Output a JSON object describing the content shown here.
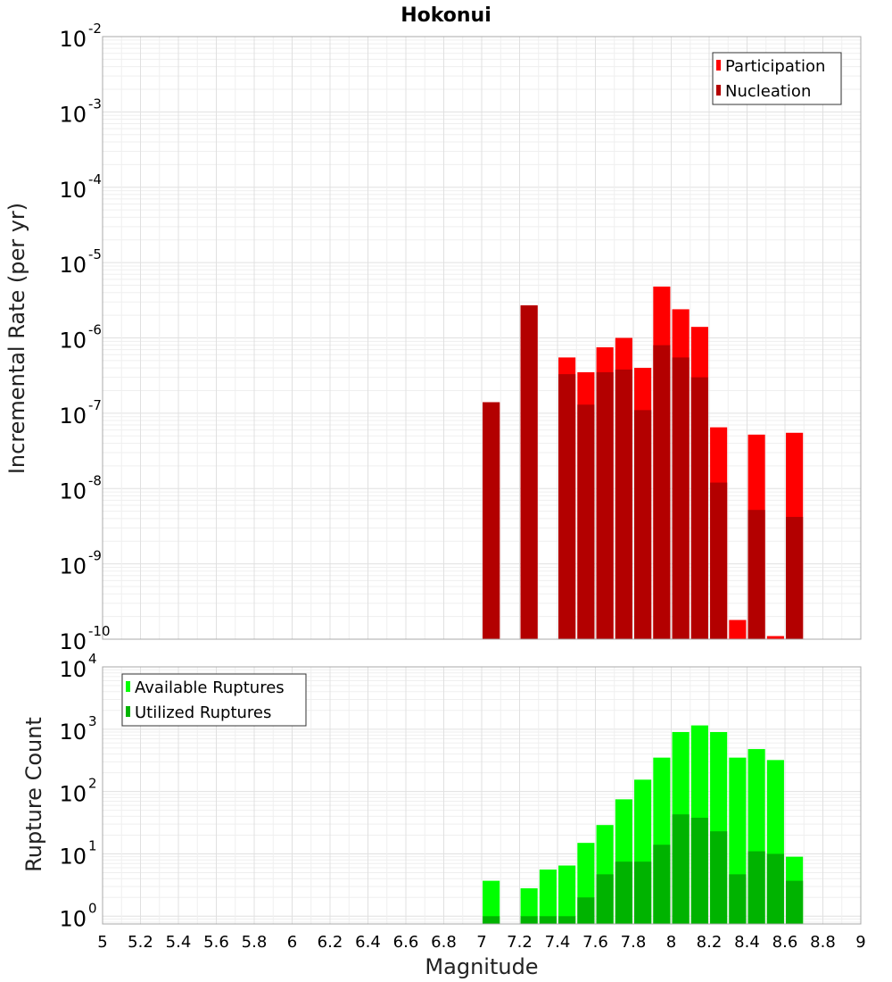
{
  "chart_data": [
    {
      "type": "bar",
      "title": "Hokonui",
      "ylabel": "Incremental Rate (per yr)",
      "yscale": "log",
      "ylim": [
        1e-10,
        0.01
      ],
      "xlim": [
        5,
        9
      ],
      "bar_width": 0.09,
      "grid": true,
      "legend_position": "top-right",
      "y_ticks": [
        {
          "base": "10",
          "exp": "-10",
          "value": 1e-10
        },
        {
          "base": "10",
          "exp": "-9",
          "value": 1e-09
        },
        {
          "base": "10",
          "exp": "-8",
          "value": 1e-08
        },
        {
          "base": "10",
          "exp": "-7",
          "value": 1e-07
        },
        {
          "base": "10",
          "exp": "-6",
          "value": 1e-06
        },
        {
          "base": "10",
          "exp": "-5",
          "value": 1e-05
        },
        {
          "base": "10",
          "exp": "-4",
          "value": 0.0001
        },
        {
          "base": "10",
          "exp": "-3",
          "value": 0.001
        },
        {
          "base": "10",
          "exp": "-2",
          "value": 0.01
        }
      ],
      "x": [
        7.05,
        7.25,
        7.45,
        7.55,
        7.65,
        7.75,
        7.85,
        7.95,
        8.05,
        8.15,
        8.25,
        8.35,
        8.45,
        8.55,
        8.65
      ],
      "series": [
        {
          "name": "Participation",
          "color": "#ff0000",
          "values": [
            1.4e-07,
            2.7e-06,
            5.5e-07,
            3.5e-07,
            7.5e-07,
            1e-06,
            4e-07,
            4.8e-06,
            2.4e-06,
            1.4e-06,
            6.5e-08,
            1.8e-10,
            5.2e-08,
            1.1e-10,
            5.5e-08
          ]
        },
        {
          "name": "Nucleation",
          "color": "#b30000",
          "values": [
            1.4e-07,
            2.7e-06,
            3.3e-07,
            1.3e-07,
            3.5e-07,
            3.8e-07,
            1.1e-07,
            8e-07,
            5.5e-07,
            3e-07,
            1.2e-08,
            null,
            5.2e-09,
            null,
            4.2e-09
          ]
        }
      ]
    },
    {
      "type": "bar",
      "xlabel": "Magnitude",
      "ylabel": "Rupture Count",
      "yscale": "log",
      "ylim": [
        0.75,
        10000
      ],
      "xlim": [
        5,
        9
      ],
      "bar_width": 0.09,
      "grid": true,
      "legend_position": "top-left",
      "y_ticks": [
        {
          "base": "10",
          "exp": "0",
          "value": 1
        },
        {
          "base": "10",
          "exp": "1",
          "value": 10
        },
        {
          "base": "10",
          "exp": "2",
          "value": 100
        },
        {
          "base": "10",
          "exp": "3",
          "value": 1000
        },
        {
          "base": "10",
          "exp": "4",
          "value": 10000
        }
      ],
      "x_ticks": [
        "5",
        "5.2",
        "5.4",
        "5.6",
        "5.8",
        "6",
        "6.2",
        "6.4",
        "6.6",
        "6.8",
        "7",
        "7.2",
        "7.4",
        "7.6",
        "7.8",
        "8",
        "8.2",
        "8.4",
        "8.6",
        "8.8",
        "9"
      ],
      "x": [
        7.05,
        7.25,
        7.35,
        7.45,
        7.55,
        7.65,
        7.75,
        7.85,
        7.95,
        8.05,
        8.15,
        8.25,
        8.35,
        8.45,
        8.55,
        8.65
      ],
      "series": [
        {
          "name": "Available Ruptures",
          "color": "#00ff00",
          "values": [
            3.7,
            2.8,
            5.6,
            6.5,
            15,
            29,
            75,
            155,
            350,
            900,
            1150,
            900,
            350,
            480,
            320,
            9
          ]
        },
        {
          "name": "Utilized Ruptures",
          "color": "#00b300",
          "values": [
            1,
            1,
            1,
            1,
            2,
            4.7,
            7.5,
            7.5,
            14,
            43,
            38,
            23,
            4.7,
            11,
            10,
            3.7
          ]
        }
      ]
    }
  ]
}
